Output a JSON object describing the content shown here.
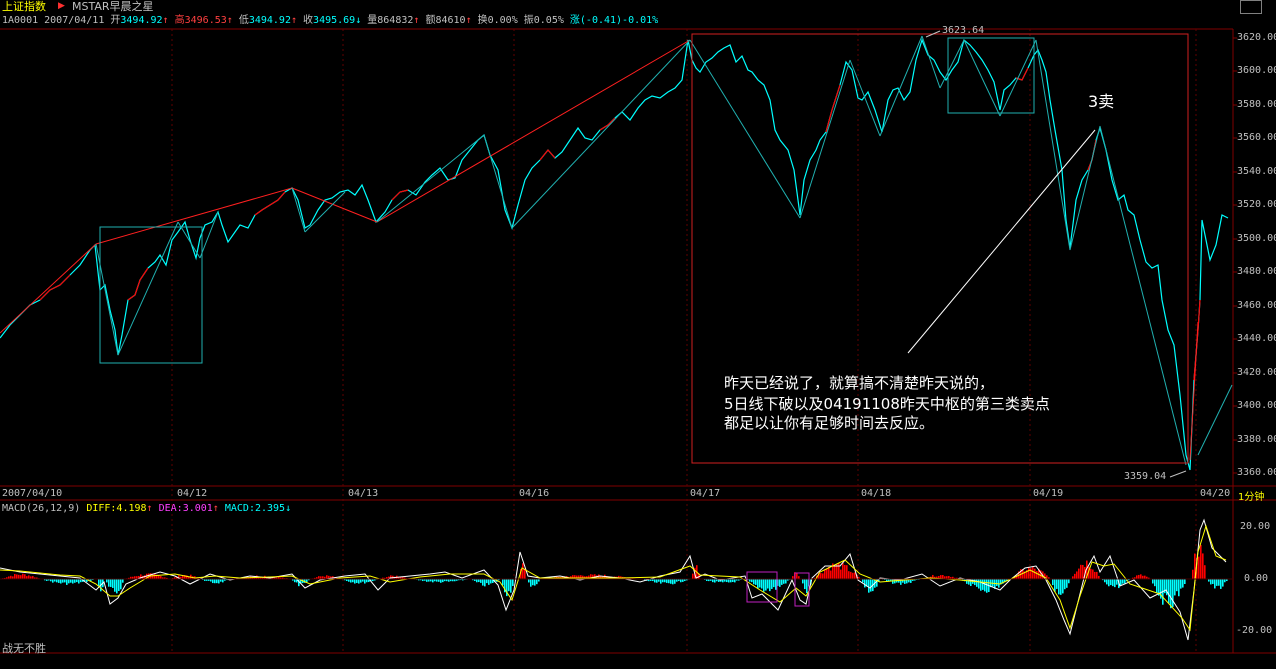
{
  "header": {
    "index_name": "上证指数",
    "arrow": "▶",
    "source": "MSTAR早晨之星"
  },
  "quote": {
    "code_date": "1A0001 2007/04/11",
    "open_label": "开",
    "open": "3494.92",
    "high_label": "高",
    "high": "3496.53",
    "low_label": "低",
    "low": "3494.92",
    "close_label": "收",
    "close": "3495.69",
    "volume_label": "量",
    "volume": "864832",
    "amount_label": "额",
    "amount": "84610",
    "turnover_label": "换",
    "turnover": "0.00%",
    "amplitude_label": "振",
    "amplitude": "0.05%",
    "change_label": "涨",
    "change": "(-0.41)-0.01%"
  },
  "yaxis": [
    "3620.00",
    "3600.00",
    "3580.00",
    "3560.00",
    "3540.00",
    "3520.00",
    "3500.00",
    "3480.00",
    "3460.00",
    "3440.00",
    "3420.00",
    "3400.00",
    "3380.00",
    "3360.00"
  ],
  "xaxis": [
    "2007/04/10",
    "04/12",
    "04/13",
    "04/16",
    "04/17",
    "04/18",
    "04/19",
    "04/20"
  ],
  "timeframe": "1分钟",
  "high_marker": "3623.64",
  "low_marker": "3359.04",
  "annotation": {
    "sell_label": "3卖",
    "lines": [
      "昨天已经说了，就算搞不清楚昨天说的，",
      "5日线下破以及04191108昨天中枢的第三类卖点",
      "都足以让你有足够时间去反应。"
    ]
  },
  "macd": {
    "name": "MACD(26,12,9)",
    "diff_label": "DIFF:",
    "diff": "4.198",
    "dea_label": "DEA:",
    "dea": "3.001",
    "macd_label": "MACD:",
    "macd": "2.395",
    "yaxis": [
      "20.00",
      "0.00",
      "-20.00"
    ]
  },
  "footer": "战无不胜",
  "colors": {
    "up": "#ff0000",
    "down": "#00ffff",
    "price": "#00ffff",
    "frame": "#c00000",
    "diff": "#ffffff",
    "dea": "#ffff00"
  }
}
